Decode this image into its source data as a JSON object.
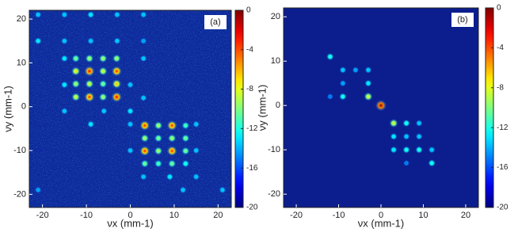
{
  "chart_data": [
    {
      "type": "spotmap",
      "panel_label": "(a)",
      "xlabel": "νx (mm-1)",
      "ylabel": "νy (mm-1)",
      "xlim": [
        -23,
        23
      ],
      "ylim": [
        -23,
        22
      ],
      "xticks": [
        -20,
        -10,
        0,
        10,
        20
      ],
      "yticks": [
        -20,
        -10,
        0,
        10,
        20
      ],
      "clim": [
        -20,
        0
      ],
      "cticks": [
        0,
        -4,
        -8,
        -12,
        -16,
        -20
      ],
      "colormap": "jet",
      "x": [
        -12.4,
        -9.3,
        -6.2,
        -3.1,
        -12.4,
        -9.3,
        -6.2,
        -3.1,
        -12.4,
        -9.3,
        -6.2,
        -3.1,
        -12.4,
        -9.3,
        -6.2,
        -3.1,
        3.3,
        6.4,
        9.5,
        12.6,
        3.3,
        6.4,
        9.5,
        12.6,
        3.3,
        6.4,
        9.5,
        12.6,
        3.3,
        6.4,
        9.5,
        12.6,
        -21,
        -15,
        -9,
        -3,
        3,
        -21,
        -15,
        -9,
        -3,
        3,
        -15,
        -15,
        -15,
        -6,
        0,
        0,
        3,
        -9,
        3,
        0,
        0,
        15,
        15,
        15,
        3,
        9,
        12,
        21,
        -21
      ],
      "y": [
        11,
        11,
        11,
        11,
        8.1,
        8.1,
        8.1,
        8.1,
        5.2,
        5.2,
        5.2,
        5.2,
        2.2,
        2.2,
        2.2,
        2.2,
        -4.3,
        -4.3,
        -4.3,
        -4.3,
        -7.2,
        -7.2,
        -7.2,
        -7.2,
        -10.1,
        -10.1,
        -10.1,
        -10.1,
        -13,
        -13,
        -13,
        -13,
        21,
        21,
        21,
        21,
        21,
        15,
        15,
        15,
        15,
        15,
        11,
        5,
        -1,
        -1,
        -1,
        5,
        2,
        -4,
        11,
        -4,
        -10,
        -4,
        -10,
        -16,
        -16,
        -16,
        -19,
        -19,
        -19
      ],
      "values": [
        -10,
        -9,
        -9,
        -9,
        -7,
        -2,
        -8,
        -3,
        -9,
        -8,
        -10,
        -6,
        -8,
        -3,
        -9,
        -2,
        -3,
        -9,
        -3,
        -11,
        -9,
        -10,
        -9,
        -10,
        -3,
        -9,
        -3,
        -10,
        -10,
        -11,
        -10,
        -12,
        -14,
        -14,
        -13,
        -14,
        -14,
        -13,
        -14,
        -14,
        -14,
        -15,
        -13,
        -13,
        -14,
        -14,
        -13,
        -14,
        -14,
        -13,
        -14,
        -14,
        -14,
        -14,
        -14,
        -14,
        -14,
        -13,
        -14,
        -14,
        -15
      ]
    },
    {
      "type": "spotmap",
      "panel_label": "(b)",
      "xlabel": "νx (mm-1)",
      "ylabel": "νy (mm-1)",
      "xlim": [
        -23,
        23
      ],
      "ylim": [
        -23,
        22
      ],
      "xticks": [
        -20,
        -10,
        0,
        10,
        20
      ],
      "yticks": [
        -20,
        -10,
        0,
        10,
        20
      ],
      "clim": [
        -20,
        0
      ],
      "cticks": [
        0,
        -4,
        -8,
        -12,
        -16,
        -20
      ],
      "colormap": "jet",
      "x": [
        -12,
        -9,
        -6,
        -3,
        -9,
        -3,
        -12,
        -9,
        -3,
        0,
        3,
        6,
        9,
        3,
        6,
        9,
        3,
        6,
        9,
        12,
        12,
        6
      ],
      "y": [
        11,
        8,
        8,
        8,
        5,
        5,
        2,
        2,
        2,
        0,
        -4,
        -4,
        -4,
        -7,
        -7,
        -7,
        -10,
        -10,
        -10,
        -10,
        -13,
        -13
      ],
      "values": [
        -12,
        -14,
        -15,
        -14,
        -15,
        -13,
        -16,
        -12,
        -8,
        0,
        -8,
        -12,
        -14,
        -13,
        -14,
        -14,
        -13,
        -12,
        -12,
        -14,
        -12,
        -16
      ]
    }
  ]
}
